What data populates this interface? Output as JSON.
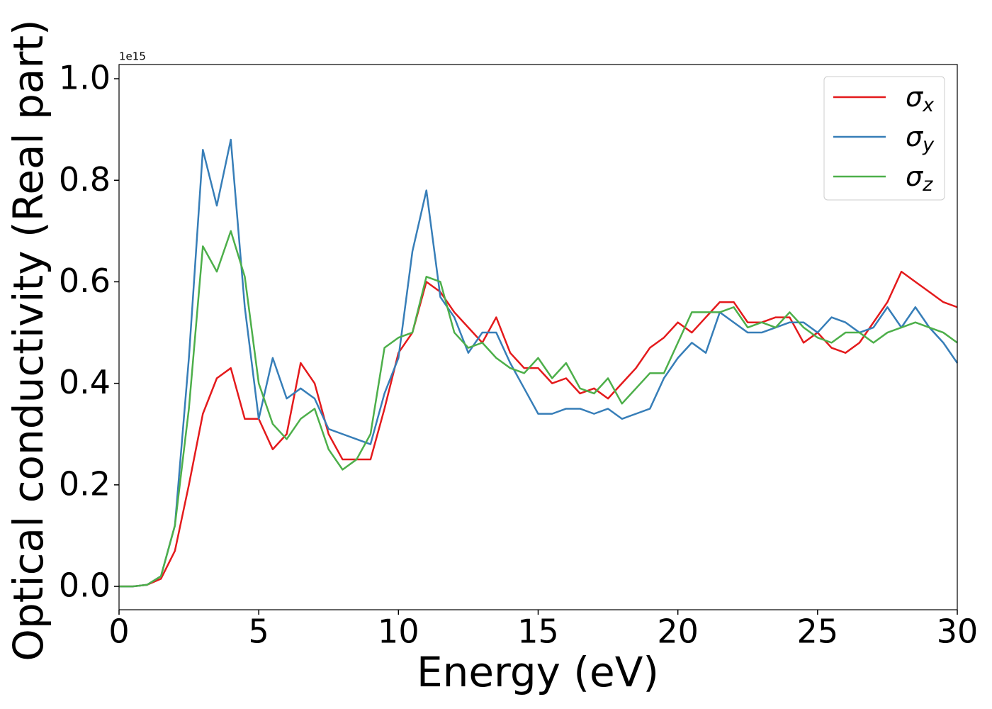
{
  "chart_data": {
    "type": "line",
    "xlabel": "Energy (eV)",
    "ylabel": "Optical conductivity (Real part)",
    "y_offset_label": "1e15",
    "x": [
      0,
      0.5,
      1,
      1.5,
      2,
      2.5,
      3,
      3.5,
      4,
      4.5,
      5,
      5.5,
      6,
      6.5,
      7,
      7.5,
      8,
      8.5,
      9,
      9.5,
      10,
      10.5,
      11,
      11.5,
      12,
      12.5,
      13,
      13.5,
      14,
      14.5,
      15,
      15.5,
      16,
      16.5,
      17,
      17.5,
      18,
      18.5,
      19,
      19.5,
      20,
      20.5,
      21,
      21.5,
      22,
      22.5,
      23,
      23.5,
      24,
      24.5,
      25,
      25.5,
      26,
      26.5,
      27,
      27.5,
      28,
      28.5,
      29,
      29.5,
      30
    ],
    "series": [
      {
        "name": "σx",
        "color": "#e41a1c",
        "values": [
          0,
          0,
          0.003,
          0.015,
          0.07,
          0.2,
          0.34,
          0.41,
          0.43,
          0.33,
          0.33,
          0.27,
          0.3,
          0.44,
          0.4,
          0.3,
          0.25,
          0.25,
          0.25,
          0.35,
          0.46,
          0.5,
          0.6,
          0.58,
          0.54,
          0.51,
          0.48,
          0.53,
          0.46,
          0.43,
          0.43,
          0.4,
          0.41,
          0.38,
          0.39,
          0.37,
          0.4,
          0.43,
          0.47,
          0.49,
          0.52,
          0.5,
          0.53,
          0.56,
          0.56,
          0.52,
          0.52,
          0.53,
          0.53,
          0.48,
          0.5,
          0.47,
          0.46,
          0.48,
          0.52,
          0.56,
          0.62,
          0.6,
          0.58,
          0.56,
          0.55
        ]
      },
      {
        "name": "σy",
        "color": "#377eb8",
        "values": [
          0,
          0,
          0.003,
          0.02,
          0.12,
          0.45,
          0.86,
          0.75,
          0.88,
          0.55,
          0.33,
          0.45,
          0.37,
          0.39,
          0.37,
          0.31,
          0.3,
          0.29,
          0.28,
          0.38,
          0.45,
          0.66,
          0.78,
          0.57,
          0.53,
          0.46,
          0.5,
          0.5,
          0.44,
          0.39,
          0.34,
          0.34,
          0.35,
          0.35,
          0.34,
          0.35,
          0.33,
          0.34,
          0.35,
          0.41,
          0.45,
          0.48,
          0.46,
          0.54,
          0.52,
          0.5,
          0.5,
          0.51,
          0.52,
          0.52,
          0.5,
          0.53,
          0.52,
          0.5,
          0.51,
          0.55,
          0.51,
          0.55,
          0.51,
          0.48,
          0.44
        ]
      },
      {
        "name": "σz",
        "color": "#4daf4a",
        "values": [
          0,
          0,
          0.003,
          0.02,
          0.12,
          0.35,
          0.67,
          0.62,
          0.7,
          0.61,
          0.4,
          0.32,
          0.29,
          0.33,
          0.35,
          0.27,
          0.23,
          0.25,
          0.3,
          0.47,
          0.49,
          0.5,
          0.61,
          0.6,
          0.5,
          0.47,
          0.48,
          0.45,
          0.43,
          0.42,
          0.45,
          0.41,
          0.44,
          0.39,
          0.38,
          0.41,
          0.36,
          0.39,
          0.42,
          0.42,
          0.48,
          0.54,
          0.54,
          0.54,
          0.55,
          0.51,
          0.52,
          0.51,
          0.54,
          0.51,
          0.49,
          0.48,
          0.5,
          0.5,
          0.48,
          0.5,
          0.51,
          0.52,
          0.51,
          0.5,
          0.48
        ]
      }
    ],
    "xlim": [
      0,
      30
    ],
    "xticks": [
      0,
      5,
      10,
      15,
      20,
      25,
      30
    ],
    "ylim": [
      -0.046,
      1.028
    ],
    "yticks": [
      {
        "value": 0,
        "label": "0.0"
      },
      0.2,
      0.4,
      0.6,
      0.8,
      {
        "value": 1,
        "label": "1.0"
      }
    ],
    "grid": false,
    "legend": "upper right"
  }
}
